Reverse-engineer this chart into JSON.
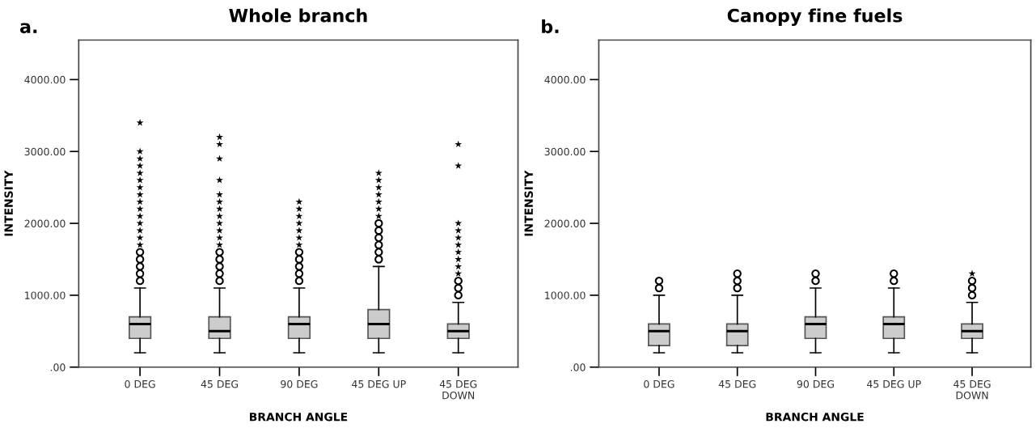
{
  "chart_data": [
    {
      "type": "box",
      "title": "Whole branch",
      "xlabel": "BRANCH ANGLE",
      "ylabel": "INTENSITY",
      "annotations": [
        "a."
      ],
      "categories": [
        "0 DEG",
        "45 DEG",
        "90 DEG",
        "45 DEG UP",
        "45 DEG\nDOWN"
      ],
      "ylim": [
        0,
        4550
      ],
      "yticks": [
        {
          "value": 0,
          "label": ".00"
        },
        {
          "value": 1000,
          "label": "1000.00"
        },
        {
          "value": 2000,
          "label": "2000.00"
        },
        {
          "value": 3000,
          "label": "3000.00"
        },
        {
          "value": 4000,
          "label": "4000.00"
        }
      ],
      "grid": false,
      "legend": false,
      "series": [
        {
          "type": "box",
          "color": "#cccccc",
          "boxes": [
            {
              "low": 200,
              "q1": 400,
              "median": 600,
              "q3": 700,
              "high": 1100,
              "outliers": [
                1200,
                1300,
                1400,
                1500,
                1600
              ]
            },
            {
              "low": 200,
              "q1": 400,
              "median": 500,
              "q3": 700,
              "high": 1100,
              "outliers": [
                1200,
                1300,
                1400,
                1500,
                1600
              ]
            },
            {
              "low": 200,
              "q1": 400,
              "median": 600,
              "q3": 700,
              "high": 1100,
              "outliers": [
                1200,
                1300,
                1400,
                1500,
                1600
              ]
            },
            {
              "low": 200,
              "q1": 400,
              "median": 600,
              "q3": 800,
              "high": 1400,
              "outliers": [
                1500,
                1600,
                1700,
                1800,
                1900,
                2000
              ]
            },
            {
              "low": 200,
              "q1": 400,
              "median": 500,
              "q3": 600,
              "high": 900,
              "outliers": [
                1000,
                1100,
                1200
              ]
            }
          ]
        },
        {
          "type": "scatter",
          "marker": "star",
          "color": "#000000",
          "x": [
            "0 DEG",
            "0 DEG",
            "0 DEG",
            "0 DEG",
            "0 DEG",
            "0 DEG",
            "0 DEG",
            "0 DEG",
            "0 DEG",
            "0 DEG",
            "0 DEG",
            "0 DEG",
            "0 DEG",
            "0 DEG",
            "0 DEG",
            "45 DEG",
            "45 DEG",
            "45 DEG",
            "45 DEG",
            "45 DEG",
            "45 DEG",
            "45 DEG",
            "45 DEG",
            "45 DEG",
            "45 DEG",
            "45 DEG",
            "45 DEG",
            "90 DEG",
            "90 DEG",
            "90 DEG",
            "90 DEG",
            "90 DEG",
            "90 DEG",
            "90 DEG",
            "45 DEG UP",
            "45 DEG UP",
            "45 DEG UP",
            "45 DEG UP",
            "45 DEG UP",
            "45 DEG UP",
            "45 DEG UP",
            "45 DEG\nDOWN",
            "45 DEG\nDOWN",
            "45 DEG\nDOWN",
            "45 DEG\nDOWN",
            "45 DEG\nDOWN",
            "45 DEG\nDOWN",
            "45 DEG\nDOWN",
            "45 DEG\nDOWN",
            "45 DEG\nDOWN",
            "45 DEG\nDOWN"
          ],
          "values": [
            1700,
            1800,
            1900,
            2000,
            2100,
            2200,
            2300,
            2400,
            2500,
            2600,
            2700,
            2800,
            2900,
            3000,
            3400,
            1700,
            1800,
            1900,
            2000,
            2100,
            2200,
            2300,
            2400,
            2600,
            2900,
            3100,
            3200,
            1700,
            1800,
            1900,
            2000,
            2100,
            2200,
            2300,
            2100,
            2200,
            2300,
            2400,
            2500,
            2600,
            2700,
            1300,
            1400,
            1500,
            1600,
            1700,
            1800,
            1900,
            2000,
            2800,
            3100
          ]
        }
      ]
    },
    {
      "type": "box",
      "title": "Canopy fine fuels",
      "xlabel": "BRANCH ANGLE",
      "ylabel": "INTENSITY",
      "annotations": [
        "b."
      ],
      "categories": [
        "0 DEG",
        "45 DEG",
        "90 DEG",
        "45 DEG UP",
        "45 DEG\nDOWN"
      ],
      "ylim": [
        0,
        4550
      ],
      "yticks": [
        {
          "value": 0,
          "label": ".00"
        },
        {
          "value": 1000,
          "label": "1000.00"
        },
        {
          "value": 2000,
          "label": "2000.00"
        },
        {
          "value": 3000,
          "label": "3000.00"
        },
        {
          "value": 4000,
          "label": "4000.00"
        }
      ],
      "grid": false,
      "legend": false,
      "series": [
        {
          "type": "box",
          "color": "#cccccc",
          "boxes": [
            {
              "low": 200,
              "q1": 300,
              "median": 500,
              "q3": 600,
              "high": 1000,
              "outliers": [
                1100,
                1200
              ]
            },
            {
              "low": 200,
              "q1": 300,
              "median": 500,
              "q3": 600,
              "high": 1000,
              "outliers": [
                1100,
                1200,
                1300
              ]
            },
            {
              "low": 200,
              "q1": 400,
              "median": 600,
              "q3": 700,
              "high": 1100,
              "outliers": [
                1200,
                1300
              ]
            },
            {
              "low": 200,
              "q1": 400,
              "median": 600,
              "q3": 700,
              "high": 1100,
              "outliers": [
                1200,
                1300
              ]
            },
            {
              "low": 200,
              "q1": 400,
              "median": 500,
              "q3": 600,
              "high": 900,
              "outliers": [
                1000,
                1100,
                1200
              ]
            }
          ]
        },
        {
          "type": "scatter",
          "marker": "star",
          "color": "#000000",
          "x": [
            "45 DEG\nDOWN"
          ],
          "values": [
            1300
          ]
        }
      ]
    }
  ]
}
